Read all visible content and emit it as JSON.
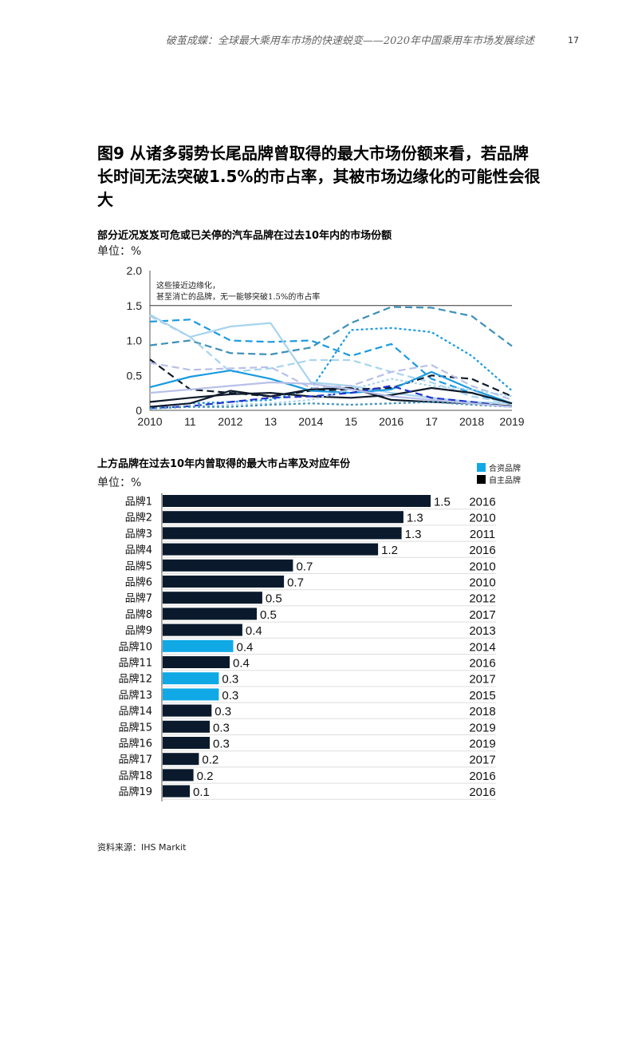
{
  "page": {
    "header": "破茧成蝶：全球最大乘用车市场的快速蜕变——2020年中国乘用车市场发展综述",
    "page_number": "17",
    "figure_title": "图9 从诸多弱势长尾品牌曾取得的最大市场份额来看，若品牌长时间无法突破1.5%的市占率，其被市场边缘化的可能性会很大",
    "source": "资料来源：IHS Markit"
  },
  "chart_data": [
    {
      "type": "line",
      "title": "部分近况岌岌可危或已关停的汽车品牌在过去10年内的市场份额",
      "unit_label": "单位：%",
      "x": [
        2010,
        2011,
        2012,
        2013,
        2014,
        2015,
        2016,
        2017,
        2018,
        2019
      ],
      "x_tick_labels": [
        "2010",
        "11",
        "2012",
        "13",
        "2014",
        "15",
        "2016",
        "17",
        "2018",
        "2019"
      ],
      "y_ticks": [
        "0",
        "0.5",
        "1.0",
        "1.5",
        "2.0"
      ],
      "ylim": [
        0,
        2.0
      ],
      "reference_line": 1.5,
      "annotation": "这些接近边缘化，甚至消亡的品牌，无一能够突破1.5%的市占率",
      "colors": {
        "blue": "#1a9ae0",
        "teal": "#3d90b8",
        "dark": "#0e1a2b",
        "light": "#a8d4ee",
        "lavender": "#b8c0e8",
        "indigo": "#2233c8"
      },
      "series": [
        {
          "color": "#3d90b8",
          "dash": "dash",
          "values": [
            0.93,
            1.0,
            0.82,
            0.8,
            0.9,
            1.25,
            1.48,
            1.47,
            1.35,
            0.92
          ]
        },
        {
          "color": "#1a9ae0",
          "dash": "dash",
          "values": [
            1.27,
            1.3,
            1.0,
            0.98,
            1.0,
            0.78,
            0.95,
            0.45,
            0.25,
            0.08
          ]
        },
        {
          "color": "#a8d4ee",
          "dash": "solid",
          "values": [
            1.37,
            1.05,
            1.2,
            1.25,
            0.4,
            0.35,
            0.25,
            0.18,
            0.12,
            0.1
          ]
        },
        {
          "color": "#1a9ae0",
          "dash": "dot",
          "values": [
            0.05,
            0.1,
            0.12,
            0.15,
            0.3,
            1.15,
            1.18,
            1.12,
            0.78,
            0.28
          ]
        },
        {
          "color": "#a8d4ee",
          "dash": "dash",
          "values": [
            1.35,
            1.05,
            0.55,
            0.6,
            0.72,
            0.72,
            0.55,
            0.4,
            0.2,
            0.1
          ]
        },
        {
          "color": "#0e1a2b",
          "dash": "dash",
          "values": [
            0.73,
            0.3,
            0.25,
            0.2,
            0.28,
            0.3,
            0.32,
            0.5,
            0.45,
            0.2
          ]
        },
        {
          "color": "#b8c0e8",
          "dash": "dash",
          "values": [
            0.68,
            0.58,
            0.6,
            0.62,
            0.32,
            0.35,
            0.55,
            0.65,
            0.35,
            0.15
          ]
        },
        {
          "color": "#1a9ae0",
          "dash": "solid",
          "values": [
            0.33,
            0.48,
            0.57,
            0.45,
            0.28,
            0.25,
            0.3,
            0.55,
            0.3,
            0.1
          ]
        },
        {
          "color": "#0e1a2b",
          "dash": "solid",
          "values": [
            0.12,
            0.18,
            0.23,
            0.25,
            0.2,
            0.18,
            0.22,
            0.32,
            0.25,
            0.1
          ]
        },
        {
          "color": "#2233c8",
          "dash": "dash",
          "values": [
            0.03,
            0.06,
            0.12,
            0.18,
            0.2,
            0.25,
            0.35,
            0.18,
            0.12,
            0.05
          ]
        },
        {
          "color": "#0e1a2b",
          "dash": "solid",
          "values": [
            0.05,
            0.1,
            0.28,
            0.2,
            0.3,
            0.32,
            0.15,
            0.12,
            0.1,
            0.06
          ]
        },
        {
          "color": "#a8d4ee",
          "dash": "dot",
          "values": [
            0.02,
            0.05,
            0.08,
            0.1,
            0.15,
            0.3,
            0.45,
            0.35,
            0.3,
            0.2
          ]
        },
        {
          "color": "#3d90b8",
          "dash": "dot",
          "values": [
            0.03,
            0.05,
            0.05,
            0.08,
            0.1,
            0.08,
            0.1,
            0.12,
            0.08,
            0.05
          ]
        },
        {
          "color": "#b8c0e8",
          "dash": "solid",
          "values": [
            0.25,
            0.3,
            0.35,
            0.4,
            0.38,
            0.3,
            0.2,
            0.15,
            0.1,
            0.05
          ]
        }
      ]
    },
    {
      "type": "bar",
      "orientation": "horizontal",
      "title": "上方品牌在过去10年内曾取得的最大市占率及对应年份",
      "unit_label": "单位：%",
      "xlim": [
        0,
        2.0
      ],
      "legend": [
        {
          "label": "合资品牌",
          "color": "#10a9e6"
        },
        {
          "label": "自主品牌",
          "color": "#000000"
        }
      ],
      "categories": [
        "品牌1",
        "品牌2",
        "品牌3",
        "品牌4",
        "品牌5",
        "品牌6",
        "品牌7",
        "品牌8",
        "品牌9",
        "品牌10",
        "品牌11",
        "品牌12",
        "品牌13",
        "品牌14",
        "品牌15",
        "品牌16",
        "品牌17",
        "品牌18",
        "品牌19"
      ],
      "values": [
        1.5,
        1.3,
        1.3,
        1.2,
        0.7,
        0.7,
        0.5,
        0.5,
        0.4,
        0.4,
        0.4,
        0.3,
        0.3,
        0.3,
        0.3,
        0.3,
        0.2,
        0.2,
        0.1
      ],
      "plot_values": [
        1.48,
        1.33,
        1.32,
        1.19,
        0.72,
        0.67,
        0.55,
        0.52,
        0.44,
        0.39,
        0.37,
        0.31,
        0.31,
        0.27,
        0.26,
        0.26,
        0.2,
        0.17,
        0.15
      ],
      "types": [
        "domestic",
        "domestic",
        "domestic",
        "domestic",
        "domestic",
        "domestic",
        "domestic",
        "domestic",
        "domestic",
        "jv",
        "domestic",
        "jv",
        "jv",
        "domestic",
        "domestic",
        "domestic",
        "domestic",
        "domestic",
        "domestic"
      ],
      "years": [
        "2016",
        "2010",
        "2011",
        "2016",
        "2010",
        "2010",
        "2012",
        "2017",
        "2013",
        "2014",
        "2016",
        "2017",
        "2015",
        "2018",
        "2019",
        "2019",
        "2017",
        "2016",
        "2016"
      ],
      "colors": {
        "jv": "#10a9e6",
        "domestic": "#0a1a2c"
      }
    }
  ]
}
